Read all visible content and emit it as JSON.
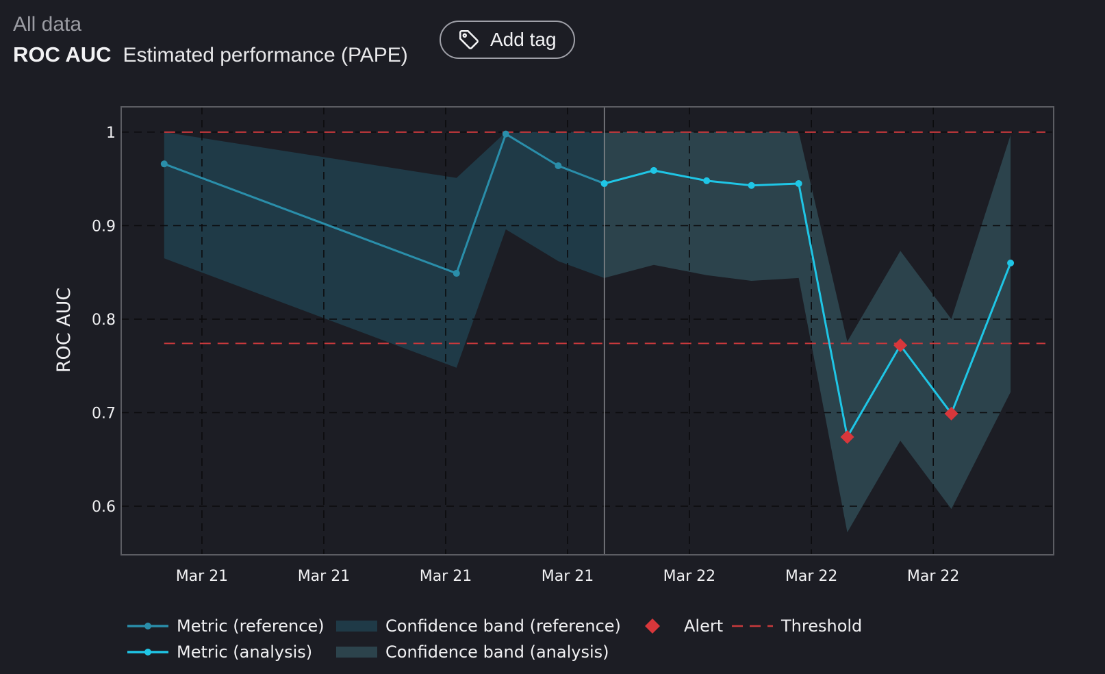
{
  "header": {
    "breadcrumb": "All data",
    "metric_name": "ROC AUC",
    "subtitle": "Estimated performance (PAPE)",
    "tag_button_label": "Add tag"
  },
  "colors": {
    "background": "#1c1d24",
    "reference_line": "#2a8eaa",
    "analysis_line": "#1fc6e6",
    "reference_band": "#1f3a47",
    "analysis_band": "#2c434c",
    "alert": "#d8373b",
    "threshold": "#c8393c",
    "grid": "#0b0b0d",
    "border": "#5c5d63"
  },
  "chart_data": {
    "type": "line",
    "ylabel": "ROC AUC",
    "ylim": [
      0.548,
      1.027
    ],
    "xlim": [
      0,
      1
    ],
    "yticks": [
      0.6,
      0.7,
      0.8,
      0.9,
      1
    ],
    "ytick_labels": [
      "0.6",
      "0.7",
      "0.8",
      "0.9",
      "1"
    ],
    "xticks": [
      0.0866,
      0.2173,
      0.348,
      0.4787,
      0.6093,
      0.7402,
      0.8709
    ],
    "xtick_labels": [
      "Mar 21",
      "Mar 21",
      "Mar 21",
      "Mar 21",
      "Mar 22",
      "Mar 22",
      "Mar 22"
    ],
    "period_boundary_x": 0.5181,
    "thresholds": [
      {
        "name": "Threshold",
        "value": 1.0
      },
      {
        "name": "Threshold",
        "value": 0.774
      }
    ],
    "series": [
      {
        "name": "Metric (reference)",
        "kind": "metric",
        "x": [
          0.0461,
          0.3596,
          0.4125,
          0.4687,
          0.5181
        ],
        "y": [
          0.966,
          0.849,
          0.998,
          0.964,
          0.945
        ]
      },
      {
        "name": "Metric (analysis)",
        "kind": "metric",
        "x": [
          0.5181,
          0.5712,
          0.6279,
          0.6759,
          0.7266,
          0.7787,
          0.8356,
          0.8903,
          0.9538
        ],
        "y": [
          0.945,
          0.959,
          0.948,
          0.943,
          0.945,
          0.674,
          0.772,
          0.699,
          0.86
        ]
      }
    ],
    "bands": [
      {
        "name": "Confidence band (reference)",
        "x": [
          0.0461,
          0.3596,
          0.4125,
          0.4687,
          0.5181
        ],
        "upper": [
          1.0,
          0.951,
          1.0,
          1.0,
          1.0
        ],
        "lower": [
          0.865,
          0.748,
          0.896,
          0.862,
          0.844
        ]
      },
      {
        "name": "Confidence band (analysis)",
        "x": [
          0.5181,
          0.5712,
          0.6279,
          0.6759,
          0.7266,
          0.7787,
          0.8356,
          0.8903,
          0.9538
        ],
        "upper": [
          1.0,
          1.0,
          1.0,
          1.0,
          1.0,
          0.776,
          0.873,
          0.8,
          0.997
        ],
        "lower": [
          0.844,
          0.858,
          0.847,
          0.841,
          0.844,
          0.572,
          0.67,
          0.597,
          0.722
        ]
      }
    ],
    "alerts": [
      {
        "x": 0.7787,
        "y": 0.674
      },
      {
        "x": 0.8356,
        "y": 0.772
      },
      {
        "x": 0.8903,
        "y": 0.699
      }
    ],
    "legend": {
      "metric_reference": "Metric (reference)",
      "band_reference": "Confidence band (reference)",
      "alert": "Alert",
      "threshold": "Threshold",
      "metric_analysis": "Metric (analysis)",
      "band_analysis": "Confidence band (analysis)"
    }
  }
}
